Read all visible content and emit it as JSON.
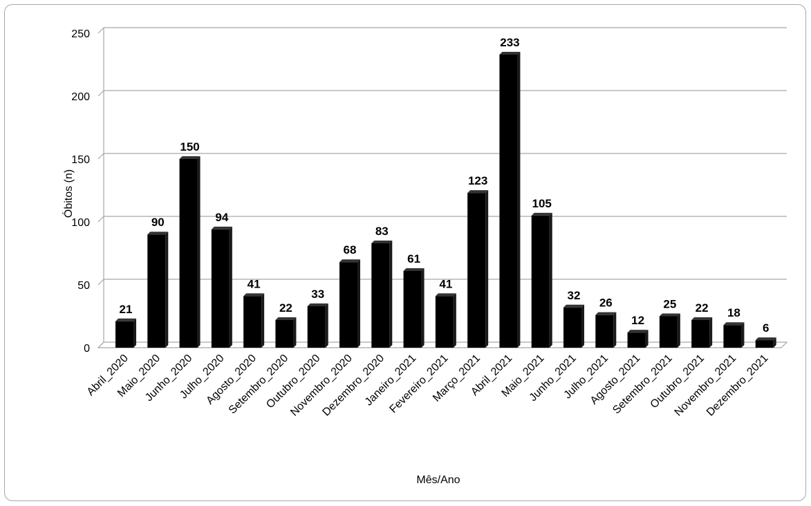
{
  "chart_data": {
    "type": "bar",
    "categories": [
      "Abril_2020",
      "Maio_2020",
      "Junho_2020",
      "Julho_2020",
      "Agosto_2020",
      "Setembro_2020",
      "Outubro_2020",
      "Novembro_2020",
      "Dezembro_2020",
      "Janeiro_2021",
      "Fevereiro_2021",
      "Março_2021",
      "Abril_2021",
      "Maio_2021",
      "Junho_2021",
      "Julho_2021",
      "Agosto_2021",
      "Setembro_2021",
      "Outubro_2021",
      "Novembro_2021",
      "Dezembro_2021"
    ],
    "values": [
      21,
      90,
      150,
      94,
      41,
      22,
      33,
      68,
      83,
      61,
      41,
      123,
      233,
      105,
      32,
      26,
      12,
      25,
      22,
      18,
      6
    ],
    "xlabel": "Mês/Ano",
    "ylabel": "Óbitos (n)",
    "ylim": [
      0,
      250
    ],
    "yticks": [
      0,
      50,
      100,
      150,
      200,
      250
    ],
    "grid": true,
    "legend": "none",
    "bar_color": "#000000",
    "grid_color": "#a6a6a6"
  }
}
